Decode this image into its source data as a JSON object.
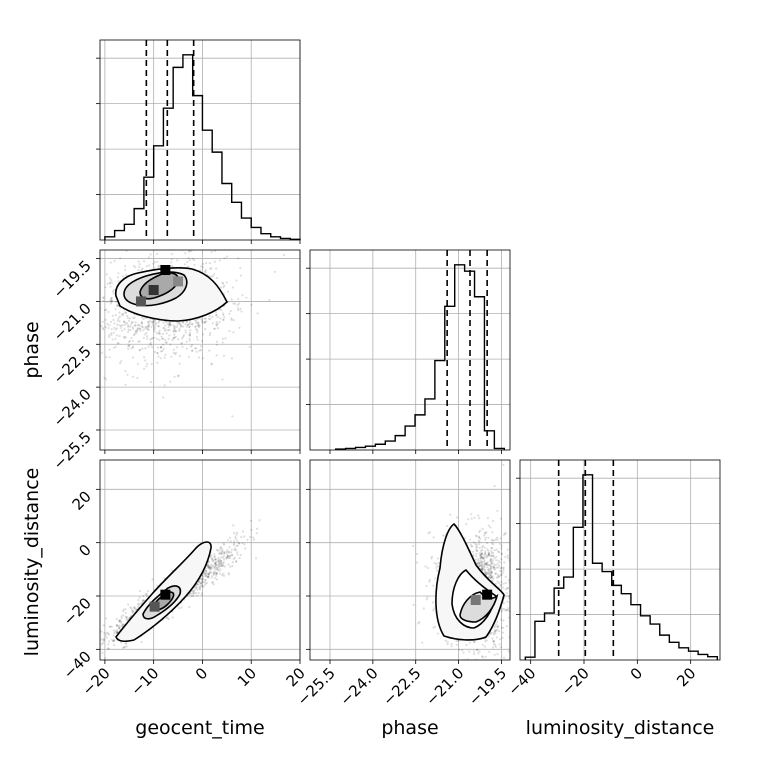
{
  "chart_data": {
    "type": "corner",
    "parameters": [
      "geocent_time",
      "phase",
      "luminosity_distance"
    ],
    "axis_labels": {
      "geocent_time": "geocent_time",
      "phase": "phase",
      "luminosity_distance": "luminosity_distance"
    },
    "ticks": {
      "geocent_time": [
        "−20",
        "−10",
        "0",
        "10",
        "20"
      ],
      "phase": [
        "−25.5",
        "−24.0",
        "−22.5",
        "−21.0",
        "−19.5"
      ],
      "luminosity_distance": [
        "−40",
        "−20",
        "0",
        "20"
      ]
    },
    "ranges": {
      "geocent_time": [
        -21,
        20
      ],
      "phase": [
        -26.2,
        -19.2
      ],
      "luminosity_distance": [
        -44,
        31
      ]
    },
    "quantiles": {
      "geocent_time": [
        -11.5,
        -7.2,
        -1.8
      ],
      "phase": [
        -21.4,
        -20.6,
        -20.0
      ],
      "luminosity_distance": [
        -29.5,
        -19.5,
        -9.0
      ]
    },
    "hist_1d": {
      "geocent_time": [
        1,
        3,
        5,
        10,
        20,
        30,
        42,
        55,
        59,
        46,
        35,
        28,
        18,
        12,
        7,
        4,
        2,
        1,
        0.5,
        0.2
      ],
      "phase": [
        0.3,
        0.5,
        0.8,
        1.2,
        1.8,
        2.8,
        4.5,
        7.5,
        11,
        16,
        28,
        45,
        58,
        56,
        48,
        6,
        0.5
      ],
      "luminosity_distance": [
        0.5,
        7,
        8.5,
        13,
        15,
        24,
        33.5,
        17.5,
        16,
        13.5,
        12,
        10,
        8,
        6.5,
        4.5,
        3.2,
        2.2,
        1.6,
        1.0,
        0.6
      ]
    },
    "hist_2d": {
      "geocent_time-phase": {
        "peak": [
          -7.5,
          -19.9
        ],
        "correlation": "weak-positive"
      },
      "geocent_time-luminosity_distance": {
        "peak": [
          -7.6,
          -19.5
        ],
        "correlation": "strong-positive"
      },
      "phase-luminosity_distance": {
        "peak": [
          -20.0,
          -19.5
        ],
        "correlation": "none"
      }
    },
    "grid": true
  }
}
